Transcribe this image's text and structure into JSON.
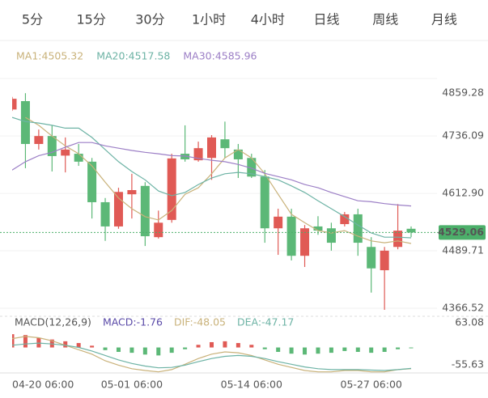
{
  "tabs": {
    "items": [
      "5分",
      "15分",
      "30分",
      "1小时",
      "4小时",
      "日线",
      "周线",
      "月线"
    ],
    "active": 5,
    "color": "#444444",
    "active_color": "#d9453f"
  },
  "chart_data": {
    "type": "candlestick",
    "categories": [
      "04-20 06:00",
      null,
      null,
      null,
      null,
      null,
      null,
      null,
      null,
      "05-01 06:00",
      null,
      null,
      null,
      null,
      null,
      null,
      null,
      null,
      "05-14 06:00",
      null,
      null,
      null,
      null,
      null,
      null,
      null,
      null,
      "05-27 06:00",
      null,
      null,
      null
    ],
    "open": [
      4793,
      4811,
      4719,
      4736,
      4694,
      4698,
      4681,
      4594,
      4542,
      4611,
      4629,
      4519,
      4556,
      4698,
      4684,
      4689,
      4729,
      4707,
      4689,
      4649,
      4538,
      4563,
      4479,
      4542,
      4538,
      4547,
      4568,
      4498,
      4448,
      4498,
      4537
    ],
    "high": [
      4820,
      4828,
      4750,
      4759,
      4733,
      4719,
      4689,
      4603,
      4625,
      4655,
      4637,
      4576,
      4698,
      4759,
      4724,
      4738,
      4767,
      4719,
      4698,
      4663,
      4580,
      4580,
      4545,
      4564,
      4550,
      4573,
      4580,
      4519,
      4498,
      4590,
      4542
    ],
    "low": [
      4790,
      4667,
      4707,
      4660,
      4658,
      4672,
      4559,
      4511,
      4537,
      4559,
      4500,
      4516,
      4550,
      4681,
      4681,
      4642,
      4689,
      4646,
      4646,
      4507,
      4481,
      4469,
      4455,
      4524,
      4490,
      4542,
      4479,
      4400,
      4363,
      4493,
      4519
    ],
    "close": [
      4816,
      4719,
      4736,
      4693,
      4707,
      4681,
      4594,
      4542,
      4616,
      4620,
      4521,
      4550,
      4688,
      4686,
      4710,
      4733,
      4710,
      4686,
      4649,
      4538,
      4563,
      4479,
      4538,
      4533,
      4507,
      4568,
      4507,
      4452,
      4490,
      4533,
      4529.06
    ],
    "up_color": "#e05a55",
    "down_color": "#5cb877",
    "ylim": [
      4350,
      4870
    ],
    "yticks": [
      4859.28,
      4736.09,
      {
        "value": 4612.9,
        "label": "4612.90"
      },
      4489.71,
      4366.52
    ],
    "last_price": 4529.06,
    "last_price_color": "#4caf6a",
    "series": [
      {
        "name": "MA1:4505.32",
        "color": "#c9b27a",
        "values": [
          null,
          4776,
          4759,
          4736,
          4715,
          4698,
          4672,
          4637,
          4603,
          4580,
          4563,
          4556,
          4576,
          4611,
          4625,
          4655,
          4689,
          4707,
          4689,
          4655,
          4611,
          4568,
          4550,
          4533,
          4528,
          4533,
          4521,
          4511,
          4507,
          4511,
          4505.32
        ]
      },
      {
        "name": "MA20:4517.58",
        "color": "#6db3a5",
        "values": [
          4776,
          4767,
          4764,
          4759,
          4753,
          4753,
          4733,
          4707,
          4681,
          4660,
          4642,
          4618,
          4608,
          4615,
          4632,
          4646,
          4655,
          4658,
          4655,
          4649,
          4642,
          4629,
          4615,
          4597,
          4580,
          4563,
          4545,
          4528,
          4519,
          4519,
          4517.58
        ]
      },
      {
        "name": "MA30:4585.96",
        "color": "#9c7fc6",
        "values": [
          4663,
          4681,
          4694,
          4701,
          4712,
          4722,
          4722,
          4715,
          4710,
          4705,
          4701,
          4698,
          4694,
          4693,
          4688,
          4684,
          4681,
          4675,
          4667,
          4656,
          4649,
          4642,
          4632,
          4625,
          4615,
          4606,
          4597,
          4595,
          4591,
          4588,
          4585.96
        ]
      }
    ],
    "macd": {
      "type": "bar",
      "title": "MACD(12,26,9)",
      "name": "MACD:-1.76",
      "color": "#5a4aa8",
      "ylim": [
        -55.63,
        63.08
      ],
      "yticks": [
        63.08,
        -55.63
      ],
      "values": [
        30,
        28,
        22,
        18,
        14,
        10,
        4,
        -6,
        -10,
        -12,
        -16,
        -18,
        -12,
        -4,
        6,
        12,
        14,
        10,
        6,
        -4,
        -10,
        -14,
        -16,
        -14,
        -12,
        -8,
        -10,
        -12,
        -10,
        -4,
        -1.76
      ],
      "series": [
        {
          "name": "DIF:-48.05",
          "color": "#c9b27a",
          "values": [
            20,
            25,
            22,
            15,
            5,
            -5,
            -15,
            -30,
            -40,
            -48,
            -52,
            -55,
            -50,
            -38,
            -25,
            -15,
            -10,
            -12,
            -18,
            -28,
            -38,
            -45,
            -52,
            -55,
            -55,
            -52,
            -52,
            -55,
            -55,
            -50,
            -48.05
          ]
        },
        {
          "name": "DEA:-47.17",
          "color": "#6db3a5",
          "values": [
            5,
            8,
            10,
            8,
            5,
            0,
            -8,
            -18,
            -28,
            -36,
            -42,
            -46,
            -45,
            -40,
            -32,
            -25,
            -20,
            -18,
            -20,
            -25,
            -32,
            -38,
            -44,
            -48,
            -50,
            -50,
            -50,
            -51,
            -52,
            -50,
            -47.17
          ]
        }
      ]
    }
  }
}
